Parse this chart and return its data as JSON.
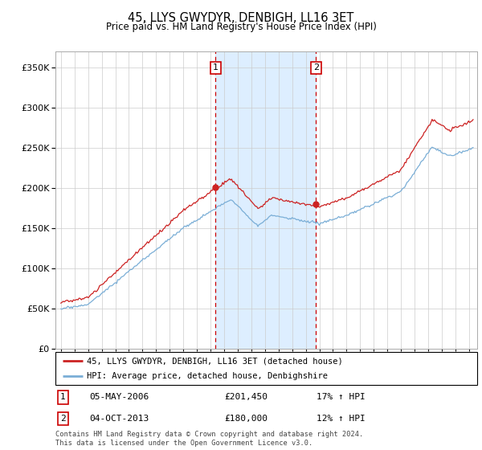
{
  "title": "45, LLYS GWYDYR, DENBIGH, LL16 3ET",
  "subtitle": "Price paid vs. HM Land Registry's House Price Index (HPI)",
  "ytick_vals": [
    0,
    50000,
    100000,
    150000,
    200000,
    250000,
    300000,
    350000
  ],
  "ylim": [
    0,
    370000
  ],
  "legend_line1": "45, LLYS GWYDYR, DENBIGH, LL16 3ET (detached house)",
  "legend_line2": "HPI: Average price, detached house, Denbighshire",
  "marker1_date": 2006.37,
  "marker1_label": "1",
  "marker1_price": 201450,
  "marker2_date": 2013.75,
  "marker2_label": "2",
  "marker2_price": 180000,
  "row1_num": "1",
  "row1_date": "05-MAY-2006",
  "row1_price": "£201,450",
  "row1_hpi": "17% ↑ HPI",
  "row2_num": "2",
  "row2_date": "04-OCT-2013",
  "row2_price": "£180,000",
  "row2_hpi": "12% ↑ HPI",
  "footer": "Contains HM Land Registry data © Crown copyright and database right 2024.\nThis data is licensed under the Open Government Licence v3.0.",
  "line_color_red": "#cc2222",
  "line_color_blue": "#7aaed6",
  "marker_box_color": "#cc0000",
  "shaded_region_color": "#ddeeff",
  "background_color": "#ffffff",
  "grid_color": "#cccccc",
  "xlim_left": 1994.6,
  "xlim_right": 2025.6
}
